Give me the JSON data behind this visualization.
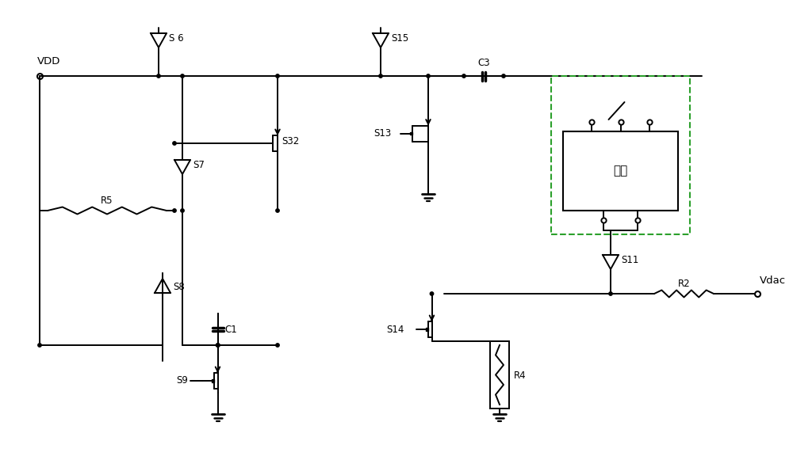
{
  "bg_color": "#ffffff",
  "line_color": "#000000",
  "dashed_color": "#2ca02c",
  "figsize": [
    10.0,
    5.76
  ],
  "dpi": 100,
  "xlim": [
    0,
    100
  ],
  "ylim": [
    0,
    57.6
  ]
}
